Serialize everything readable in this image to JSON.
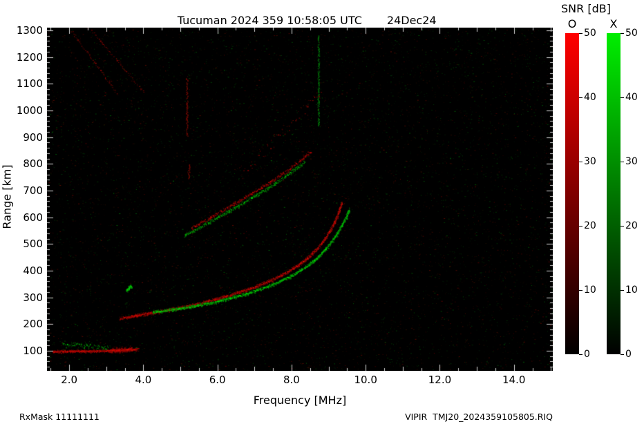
{
  "header": {
    "title": "Tucuman 2024 359 10:58:05 UTC",
    "date": "24Dec24"
  },
  "footer": {
    "left": "RxMask 11111111",
    "right": "VIPIR  TMJ20_2024359105805.RIQ"
  },
  "colorbar": {
    "title": "SNR [dB]",
    "o_label": "O",
    "x_label": "X",
    "min": 0,
    "max": 50,
    "ticks": [
      "0",
      "10",
      "20",
      "30",
      "40",
      "50"
    ],
    "o_color": "#ff0000",
    "x_color": "#00ee00"
  },
  "chart_data": {
    "type": "heatmap",
    "title": "Tucuman 2024 359 10:58:05 UTC 24Dec24",
    "xlabel": "Frequency [MHz]",
    "ylabel": "Range [km]",
    "xlim": [
      1.4,
      15.05
    ],
    "ylim": [
      25,
      1310
    ],
    "grid": false,
    "background": "#000000",
    "x_ticks": {
      "values": [
        2,
        4,
        6,
        8,
        10,
        12,
        14
      ],
      "labels": [
        "2.0",
        "4.0",
        "6.0",
        "8.0",
        "10.0",
        "12.0",
        "14.0"
      ],
      "minor_step": 0.5
    },
    "y_ticks": {
      "values": [
        100,
        200,
        300,
        400,
        500,
        600,
        700,
        800,
        900,
        1000,
        1100,
        1200,
        1300
      ],
      "labels": [
        "100",
        "200",
        "300",
        "400",
        "500",
        "600",
        "700",
        "800",
        "900",
        "1000",
        "1100",
        "1200",
        "1300"
      ],
      "minor_step": 20
    },
    "noise": {
      "count": 9000,
      "red_fraction": 0.52
    },
    "interference": [
      {
        "freq": 5.17,
        "range": [
          905,
          1120
        ],
        "color": "red"
      },
      {
        "freq": 5.22,
        "range": [
          745,
          800
        ],
        "color": "red"
      },
      {
        "freq": 8.72,
        "range": [
          940,
          1280
        ],
        "color": "green"
      }
    ],
    "series": [
      {
        "name": "E-layer O-mode trace ~100 km",
        "mode": "O",
        "density": 4,
        "jitter": 2.5,
        "gain": 1,
        "points": [
          [
            1.55,
            98
          ],
          [
            2.1,
            99
          ],
          [
            2.6,
            100
          ],
          [
            3.0,
            101
          ],
          [
            3.4,
            103
          ],
          [
            3.85,
            106
          ]
        ]
      },
      {
        "name": "E-layer bright blob",
        "mode": "O",
        "density": 5,
        "jitter": 5,
        "gain": 1,
        "points": [
          [
            3.1,
            102
          ],
          [
            3.45,
            105
          ],
          [
            3.7,
            108
          ]
        ]
      },
      {
        "name": "E-layer X-mode speckle",
        "mode": "X",
        "density": 1.2,
        "jitter": 6,
        "gain": 0.75,
        "points": [
          [
            1.8,
            128
          ],
          [
            2.2,
            122
          ],
          [
            2.6,
            118
          ],
          [
            3.05,
            112
          ]
        ]
      },
      {
        "name": "Green blob near 3.6 MHz 335 km",
        "mode": "X",
        "density": 6,
        "jitter": 4,
        "gain": 1,
        "points": [
          [
            3.54,
            326
          ],
          [
            3.66,
            344
          ]
        ]
      },
      {
        "name": "F-trace O-mode (foF2 ~9.35 MHz)",
        "mode": "O",
        "density": 3,
        "jitter": 3,
        "gain": 1,
        "points": [
          [
            3.35,
            222
          ],
          [
            3.6,
            228
          ],
          [
            4.0,
            238
          ],
          [
            4.5,
            250
          ],
          [
            5.0,
            262
          ],
          [
            5.5,
            277
          ],
          [
            6.0,
            296
          ],
          [
            6.5,
            317
          ],
          [
            7.0,
            340
          ],
          [
            7.4,
            362
          ],
          [
            7.8,
            390
          ],
          [
            8.1,
            415
          ],
          [
            8.4,
            445
          ],
          [
            8.7,
            485
          ],
          [
            8.95,
            530
          ],
          [
            9.15,
            580
          ],
          [
            9.28,
            625
          ],
          [
            9.35,
            655
          ]
        ]
      },
      {
        "name": "F-trace X-mode",
        "mode": "X",
        "density": 3,
        "jitter": 3,
        "gain": 1,
        "points": [
          [
            4.25,
            246
          ],
          [
            4.7,
            254
          ],
          [
            5.2,
            264
          ],
          [
            5.7,
            277
          ],
          [
            6.2,
            293
          ],
          [
            6.7,
            312
          ],
          [
            7.2,
            334
          ],
          [
            7.6,
            356
          ],
          [
            8.0,
            382
          ],
          [
            8.35,
            412
          ],
          [
            8.7,
            450
          ],
          [
            9.0,
            495
          ],
          [
            9.25,
            545
          ],
          [
            9.45,
            595
          ],
          [
            9.55,
            630
          ]
        ]
      },
      {
        "name": "Upper branch O-mode",
        "mode": "O",
        "density": 1.7,
        "jitter": 3.5,
        "gain": 0.85,
        "points": [
          [
            5.3,
            560
          ],
          [
            5.8,
            600
          ],
          [
            6.3,
            640
          ],
          [
            6.8,
            680
          ],
          [
            7.3,
            722
          ],
          [
            7.8,
            768
          ],
          [
            8.2,
            810
          ],
          [
            8.5,
            845
          ]
        ]
      },
      {
        "name": "Upper branch X-mode",
        "mode": "X",
        "density": 1.7,
        "jitter": 3.5,
        "gain": 0.85,
        "points": [
          [
            5.1,
            532
          ],
          [
            5.6,
            570
          ],
          [
            6.1,
            608
          ],
          [
            6.6,
            648
          ],
          [
            7.1,
            688
          ],
          [
            7.6,
            732
          ],
          [
            8.0,
            772
          ],
          [
            8.35,
            808
          ]
        ]
      },
      {
        "name": "High-range red scatter",
        "mode": "O",
        "density": 0.3,
        "jitter": 12,
        "gain": 0.7,
        "points": [
          [
            6.6,
            760
          ],
          [
            7.2,
            840
          ],
          [
            7.8,
            920
          ],
          [
            8.4,
            1010
          ],
          [
            8.8,
            1080
          ]
        ]
      },
      {
        "name": "Oblique faint streak 1",
        "mode": "O",
        "density": 0.5,
        "jitter": 2,
        "gain": 0.6,
        "points": [
          [
            2.05,
            1300
          ],
          [
            3.3,
            1060
          ]
        ]
      },
      {
        "name": "Oblique faint streak 2",
        "mode": "O",
        "density": 0.5,
        "jitter": 2,
        "gain": 0.6,
        "points": [
          [
            2.6,
            1300
          ],
          [
            4.0,
            1070
          ]
        ]
      }
    ]
  }
}
